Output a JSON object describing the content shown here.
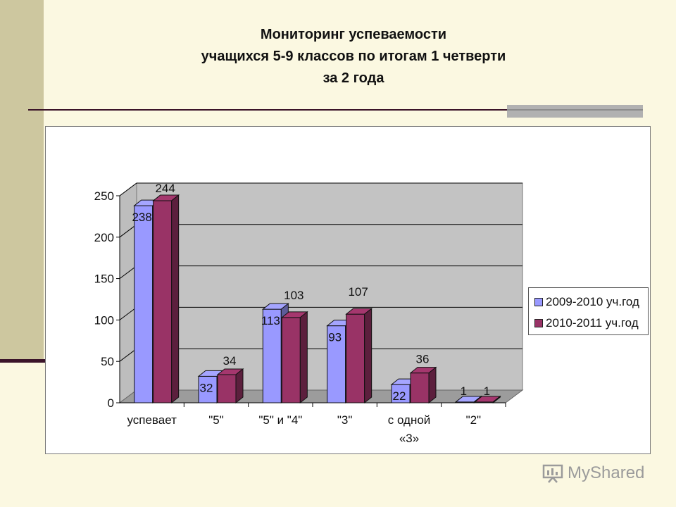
{
  "title_lines": [
    "Мониторинг успеваемости",
    "учащихся 5-9 классов по итогам 1 четверти",
    "за 2 года"
  ],
  "watermark": "MyShared",
  "chart_data": {
    "type": "bar",
    "categories": [
      "успевает",
      "\"5\"",
      "\"5\" и \"4\"",
      "\"3\"",
      "с одной «3»",
      "\"2\""
    ],
    "category_lines": [
      [
        "успевает"
      ],
      [
        "\"5\""
      ],
      [
        "\"5\" и \"4\""
      ],
      [
        "\"3\""
      ],
      [
        "с одной",
        "«3»"
      ],
      [
        "\"2\""
      ]
    ],
    "series": [
      {
        "name": "2009-2010 уч.год",
        "values": [
          238,
          32,
          113,
          93,
          22,
          1
        ],
        "color": "#9999ff"
      },
      {
        "name": "2010-2011 уч.год",
        "values": [
          244,
          34,
          103,
          107,
          36,
          1
        ],
        "color": "#993366"
      }
    ],
    "yticks": [
      "0",
      "50",
      "100",
      "150",
      "200",
      "250"
    ],
    "ylim": [
      0,
      250
    ],
    "grid": true,
    "legend_position": "right"
  }
}
